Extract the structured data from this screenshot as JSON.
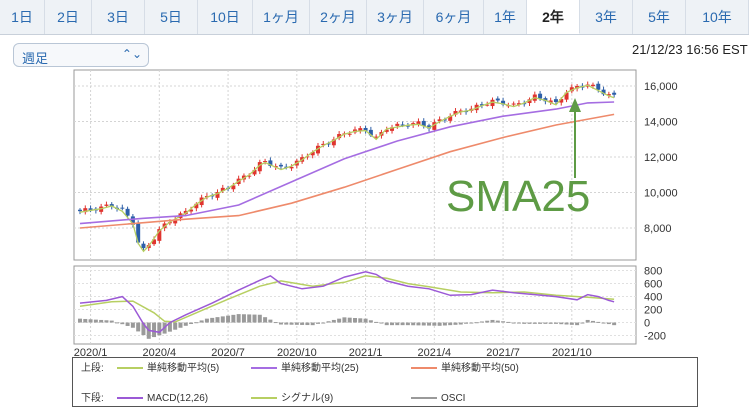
{
  "tabs": [
    {
      "label": "1日"
    },
    {
      "label": "2日"
    },
    {
      "label": "3日"
    },
    {
      "label": "5日"
    },
    {
      "label": "10日"
    },
    {
      "label": "1ヶ月"
    },
    {
      "label": "2ヶ月"
    },
    {
      "label": "3ヶ月"
    },
    {
      "label": "6ヶ月"
    },
    {
      "label": "1年"
    },
    {
      "label": "2年",
      "active": true
    },
    {
      "label": "3年"
    },
    {
      "label": "5年"
    },
    {
      "label": "10年"
    }
  ],
  "period_select": {
    "value": "週足"
  },
  "timestamp": "21/12/23 16:56 EST",
  "annotation": {
    "text": "SMA25",
    "color": "#5e9b45"
  },
  "colors": {
    "up": "#e0342f",
    "down": "#2d5fa8",
    "sma5": "#b7cf62",
    "sma25": "#a56de2",
    "sma50": "#ee8a6b",
    "macd": "#9b59d6",
    "signal": "#b7cf62",
    "osci": "#9a9a9a"
  },
  "legend": {
    "upper_label": "上段:",
    "lower_label": "下段:",
    "upper": [
      {
        "name": "単純移動平均(5)",
        "color": "#b7cf62"
      },
      {
        "name": "単純移動平均(25)",
        "color": "#a56de2"
      },
      {
        "name": "単純移動平均(50)",
        "color": "#ee8a6b"
      }
    ],
    "lower": [
      {
        "name": "MACD(12,26)",
        "color": "#9b59d6"
      },
      {
        "name": "シグナル(9)",
        "color": "#b7cf62"
      },
      {
        "name": "OSCI",
        "color": "#9a9a9a"
      }
    ]
  },
  "chart_data": [
    {
      "type": "line",
      "panel": "price",
      "x_ticks": [
        "2020/1",
        "2020/4",
        "2020/7",
        "2020/10",
        "2021/1",
        "2021/4",
        "2021/7",
        "2021/10"
      ],
      "y_ticks": [
        "16,000",
        "14,000",
        "12,000",
        "10,000",
        "8,000"
      ],
      "y_tick_values": [
        16000,
        14000,
        12000,
        10000,
        8000
      ],
      "ylim": [
        6200,
        16900
      ],
      "x_range": [
        0,
        104
      ],
      "weekly_close_approx": [
        [
          0,
          8950
        ],
        [
          4,
          9150
        ],
        [
          6,
          9300
        ],
        [
          8,
          9000
        ],
        [
          10,
          8300
        ],
        [
          11,
          7200
        ],
        [
          12,
          6750
        ],
        [
          13,
          7050
        ],
        [
          15,
          7900
        ],
        [
          17,
          8400
        ],
        [
          20,
          8900
        ],
        [
          22,
          9400
        ],
        [
          24,
          9800
        ],
        [
          26,
          10000
        ],
        [
          28,
          10300
        ],
        [
          30,
          10700
        ],
        [
          32,
          11050
        ],
        [
          34,
          11600
        ],
        [
          35,
          11750
        ],
        [
          38,
          11350
        ],
        [
          40,
          11550
        ],
        [
          42,
          11900
        ],
        [
          44,
          12350
        ],
        [
          46,
          12700
        ],
        [
          48,
          13000
        ],
        [
          50,
          13350
        ],
        [
          52,
          13500
        ],
        [
          54,
          13550
        ],
        [
          56,
          13050
        ],
        [
          58,
          13650
        ],
        [
          60,
          13750
        ],
        [
          62,
          13850
        ],
        [
          64,
          13900
        ],
        [
          66,
          13700
        ],
        [
          68,
          14050
        ],
        [
          70,
          14350
        ],
        [
          72,
          14600
        ],
        [
          74,
          14700
        ],
        [
          76,
          14950
        ],
        [
          78,
          15150
        ],
        [
          80,
          15050
        ],
        [
          82,
          14900
        ],
        [
          84,
          15100
        ],
        [
          86,
          15400
        ],
        [
          88,
          15250
        ],
        [
          90,
          15000
        ],
        [
          92,
          15700
        ],
        [
          94,
          15950
        ],
        [
          96,
          16100
        ],
        [
          98,
          15800
        ],
        [
          100,
          15500
        ],
        [
          101,
          15400
        ]
      ],
      "series": [
        {
          "name": "単純移動平均(5)",
          "color": "#b7cf62"
        },
        {
          "name": "単純移動平均(25)",
          "color": "#a56de2",
          "values_approx": [
            [
              0,
              8250
            ],
            [
              12,
              8550
            ],
            [
              20,
              8700
            ],
            [
              30,
              9300
            ],
            [
              40,
              10600
            ],
            [
              50,
              11900
            ],
            [
              60,
              12900
            ],
            [
              70,
              13700
            ],
            [
              80,
              14300
            ],
            [
              90,
              14700
            ],
            [
              96,
              15050
            ],
            [
              101,
              15100
            ]
          ]
        },
        {
          "name": "単純移動平均(50)",
          "color": "#ee8a6b",
          "values_approx": [
            [
              0,
              8000
            ],
            [
              20,
              8500
            ],
            [
              30,
              8700
            ],
            [
              40,
              9400
            ],
            [
              50,
              10300
            ],
            [
              60,
              11300
            ],
            [
              70,
              12300
            ],
            [
              80,
              13100
            ],
            [
              90,
              13800
            ],
            [
              101,
              14400
            ]
          ]
        }
      ]
    },
    {
      "type": "line",
      "panel": "macd",
      "y_ticks": [
        "800",
        "600",
        "400",
        "200",
        "0",
        "-200"
      ],
      "y_tick_values": [
        800,
        600,
        400,
        200,
        0,
        -200
      ],
      "ylim": [
        -330,
        870
      ],
      "x_range": [
        0,
        104
      ],
      "series": [
        {
          "name": "MACD(12,26)",
          "color": "#9b59d6",
          "values_approx": [
            [
              0,
              300
            ],
            [
              5,
              340
            ],
            [
              8,
              400
            ],
            [
              10,
              250
            ],
            [
              12,
              -20
            ],
            [
              13,
              -120
            ],
            [
              15,
              -150
            ],
            [
              17,
              0
            ],
            [
              20,
              120
            ],
            [
              25,
              300
            ],
            [
              30,
              500
            ],
            [
              34,
              650
            ],
            [
              36,
              720
            ],
            [
              38,
              600
            ],
            [
              42,
              520
            ],
            [
              46,
              560
            ],
            [
              50,
              700
            ],
            [
              54,
              780
            ],
            [
              56,
              740
            ],
            [
              58,
              640
            ],
            [
              62,
              560
            ],
            [
              66,
              520
            ],
            [
              70,
              420
            ],
            [
              74,
              430
            ],
            [
              78,
              500
            ],
            [
              82,
              460
            ],
            [
              86,
              430
            ],
            [
              90,
              400
            ],
            [
              94,
              350
            ],
            [
              96,
              430
            ],
            [
              98,
              400
            ],
            [
              100,
              340
            ],
            [
              101,
              320
            ]
          ]
        },
        {
          "name": "シグナル(9)",
          "color": "#b7cf62",
          "values_approx": [
            [
              0,
              250
            ],
            [
              6,
              320
            ],
            [
              10,
              330
            ],
            [
              14,
              150
            ],
            [
              16,
              20
            ],
            [
              18,
              10
            ],
            [
              22,
              150
            ],
            [
              28,
              360
            ],
            [
              34,
              560
            ],
            [
              38,
              640
            ],
            [
              44,
              560
            ],
            [
              50,
              620
            ],
            [
              54,
              720
            ],
            [
              58,
              680
            ],
            [
              62,
              600
            ],
            [
              66,
              550
            ],
            [
              72,
              470
            ],
            [
              78,
              460
            ],
            [
              84,
              470
            ],
            [
              90,
              420
            ],
            [
              96,
              390
            ],
            [
              101,
              360
            ]
          ]
        },
        {
          "name": "OSCI",
          "color": "#9a9a9a",
          "values_approx": [
            [
              0,
              60
            ],
            [
              6,
              30
            ],
            [
              10,
              -80
            ],
            [
              13,
              -250
            ],
            [
              16,
              -170
            ],
            [
              20,
              -50
            ],
            [
              24,
              60
            ],
            [
              30,
              130
            ],
            [
              34,
              120
            ],
            [
              38,
              -30
            ],
            [
              44,
              -40
            ],
            [
              50,
              80
            ],
            [
              54,
              60
            ],
            [
              58,
              -40
            ],
            [
              62,
              -40
            ],
            [
              68,
              -50
            ],
            [
              72,
              -30
            ],
            [
              78,
              40
            ],
            [
              84,
              -20
            ],
            [
              90,
              -20
            ],
            [
              94,
              -40
            ],
            [
              96,
              40
            ],
            [
              98,
              10
            ],
            [
              101,
              -40
            ]
          ]
        }
      ]
    }
  ]
}
